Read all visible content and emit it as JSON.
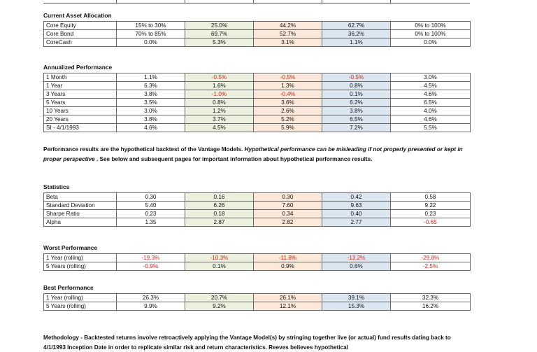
{
  "sections": {
    "allocation": {
      "title": "Current Asset Allocation",
      "rows": [
        {
          "label": "Core Equity",
          "values": [
            "15% to 30%",
            "25.0%",
            "44.2%",
            "62.7%",
            "0% to 100%"
          ]
        },
        {
          "label": "Core Bond",
          "values": [
            "70% to 85%",
            "69.7%",
            "52.7%",
            "36.2%",
            "0% to 100%"
          ]
        },
        {
          "label": "CoreCash",
          "values": [
            "0.0%",
            "5.3%",
            "3.1%",
            "1.1%",
            "0.0%"
          ]
        }
      ]
    },
    "performance": {
      "title": "Annualized Performance",
      "rows": [
        {
          "label": "1 Month",
          "values": [
            "1.1%",
            "-0.5%",
            "-0.5%",
            "-0.5%",
            "3.0%"
          ]
        },
        {
          "label": "1 Year",
          "values": [
            "6.3%",
            "1.6%",
            "1.3%",
            "0.8%",
            "4.5%"
          ]
        },
        {
          "label": "3 Years",
          "values": [
            "3.8%",
            "-1.0%",
            "-0.4%",
            "0.1%",
            "4.6%"
          ]
        },
        {
          "label": "5 Years",
          "values": [
            "3.5%",
            "0.8%",
            "3.6%",
            "6.2%",
            "6.5%"
          ]
        },
        {
          "label": "10 Years",
          "values": [
            "3.0%",
            "1.2%",
            "2.6%",
            "3.8%",
            "4.0%"
          ]
        },
        {
          "label": "20 Years",
          "values": [
            "3.8%",
            "3.7%",
            "5.2%",
            "6.5%",
            "4.6%"
          ]
        },
        {
          "label": "SI - 4/1/1993",
          "values": [
            "4.6%",
            "4.5%",
            "5.9%",
            "7.2%",
            "5.5%"
          ]
        }
      ]
    },
    "statistics": {
      "title": "Statistics",
      "rows": [
        {
          "label": "Beta",
          "values": [
            "0.30",
            "0.16",
            "0.30",
            "0.42",
            "0.58"
          ]
        },
        {
          "label": "Standard Deviation",
          "values": [
            "5.40",
            "6.26",
            "7.60",
            "9.63",
            "9.22"
          ]
        },
        {
          "label": "Sharpe Ratio",
          "values": [
            "0.23",
            "0.18",
            "0.34",
            "0.40",
            "0.23"
          ]
        },
        {
          "label": "Alpha",
          "values": [
            "1.35",
            "2.87",
            "2.82",
            "2.77",
            "-0.65"
          ]
        }
      ]
    },
    "worst": {
      "title": "Worst Performance",
      "rows": [
        {
          "label": "1 Year (rolling)",
          "values": [
            "-19.3%",
            "-10.3%",
            "-11.8%",
            "-13.2%",
            "-29.8%"
          ]
        },
        {
          "label": "5 Years (rolling)",
          "values": [
            "-0.9%",
            "0.1%",
            "0.9%",
            "0.6%",
            "-2.5%"
          ]
        }
      ]
    },
    "best": {
      "title": "Best Performance",
      "rows": [
        {
          "label": "1 Year (rolling)",
          "values": [
            "26.3%",
            "20.7%",
            "26.1%",
            "39.1%",
            "32.3%"
          ]
        },
        {
          "label": "5 Years (rolling)",
          "values": [
            "9.9%",
            "9.2%",
            "12.1%",
            "15.3%",
            "16.2%"
          ]
        }
      ]
    }
  },
  "colors": {
    "green_shade": "#ebf1de",
    "orange_shade": "#fde9d9",
    "blue_shade": "#dce6f1",
    "negative": "#e0261a"
  },
  "disclosure": {
    "part1": "Performance results are the hypothetical backtest of the Vantage Models. ",
    "part2_italic": "Hypothetical performance can be misleading if not properly presented or kept in proper perspective",
    "part3": " . See below and subsequent pages for important information about hypothetical performance results."
  },
  "methodology": {
    "text": "Methodology - Backtested returns involve retroactively applying the Vantage Model(s) by stringing together live (or actual) fund results dating back to 4/1/1993 Inception Date in order to replicate similar risk and return characteristics. Reeves believes hypothetical"
  }
}
